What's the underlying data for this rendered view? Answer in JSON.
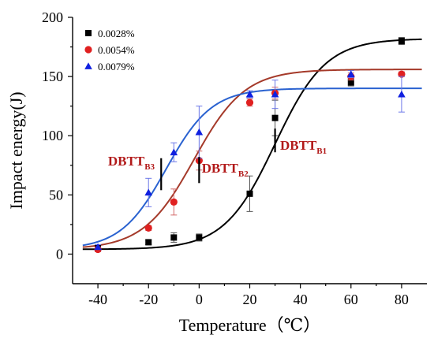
{
  "chart_data": {
    "type": "scatter",
    "xlabel": "Temperature（℃）",
    "ylabel": "Impact energy(J)",
    "xlim": [
      -50,
      90
    ],
    "ylim": [
      -25,
      200
    ],
    "xticks": [
      -40,
      -20,
      0,
      20,
      40,
      60,
      80
    ],
    "yticks": [
      0,
      50,
      100,
      150,
      200
    ],
    "legend_position": "top-left",
    "grid": false,
    "series": [
      {
        "name": "0.0028%",
        "marker": "square",
        "color": "#000000",
        "curve_color": "#000000",
        "x": [
          -40,
          -20,
          -10,
          0,
          20,
          30,
          60,
          80
        ],
        "y": [
          5,
          10,
          14,
          14,
          51,
          115,
          145,
          180
        ],
        "err": [
          2,
          2,
          4,
          3,
          15,
          15,
          3,
          3
        ],
        "fit": {
          "lower": 4,
          "upper": 182,
          "center": 30,
          "width": 10
        }
      },
      {
        "name": "0.0054%",
        "marker": "circle",
        "color": "#e02020",
        "curve_color": "#a53a2a",
        "x": [
          -40,
          -20,
          -10,
          0,
          20,
          30,
          60,
          80
        ],
        "y": [
          4,
          22,
          44,
          79,
          128,
          136,
          150,
          152
        ],
        "err": [
          2,
          2,
          11,
          8,
          3,
          5,
          3,
          2
        ],
        "fit": {
          "lower": 4,
          "upper": 156,
          "center": -2,
          "width": 10
        }
      },
      {
        "name": "0.0079%",
        "marker": "triangle",
        "color": "#1020e0",
        "curve_color": "#2a62d0",
        "x": [
          -40,
          -20,
          -10,
          0,
          20,
          30,
          60,
          80
        ],
        "y": [
          6,
          52,
          86,
          103,
          135,
          135,
          152,
          135
        ],
        "err": [
          2,
          12,
          8,
          22,
          3,
          12,
          3,
          15
        ],
        "fit": {
          "lower": 4,
          "upper": 140,
          "center": -13,
          "width": 9
        }
      }
    ],
    "annotations": [
      {
        "main": "DBTT",
        "sub": "B1",
        "x": 32,
        "y": 88,
        "line_x": 30,
        "line_y": [
          86,
          106
        ],
        "color": "#b21a1a"
      },
      {
        "main": "DBTT",
        "sub": "B2",
        "x": 1,
        "y": 69,
        "line_x": 0,
        "line_y": [
          60,
          82
        ],
        "color": "#b21a1a"
      },
      {
        "main": "DBTT",
        "sub": "B3",
        "x": -36,
        "y": 75,
        "line_x": -15,
        "line_y": [
          54,
          81
        ],
        "color": "#b21a1a"
      }
    ]
  }
}
